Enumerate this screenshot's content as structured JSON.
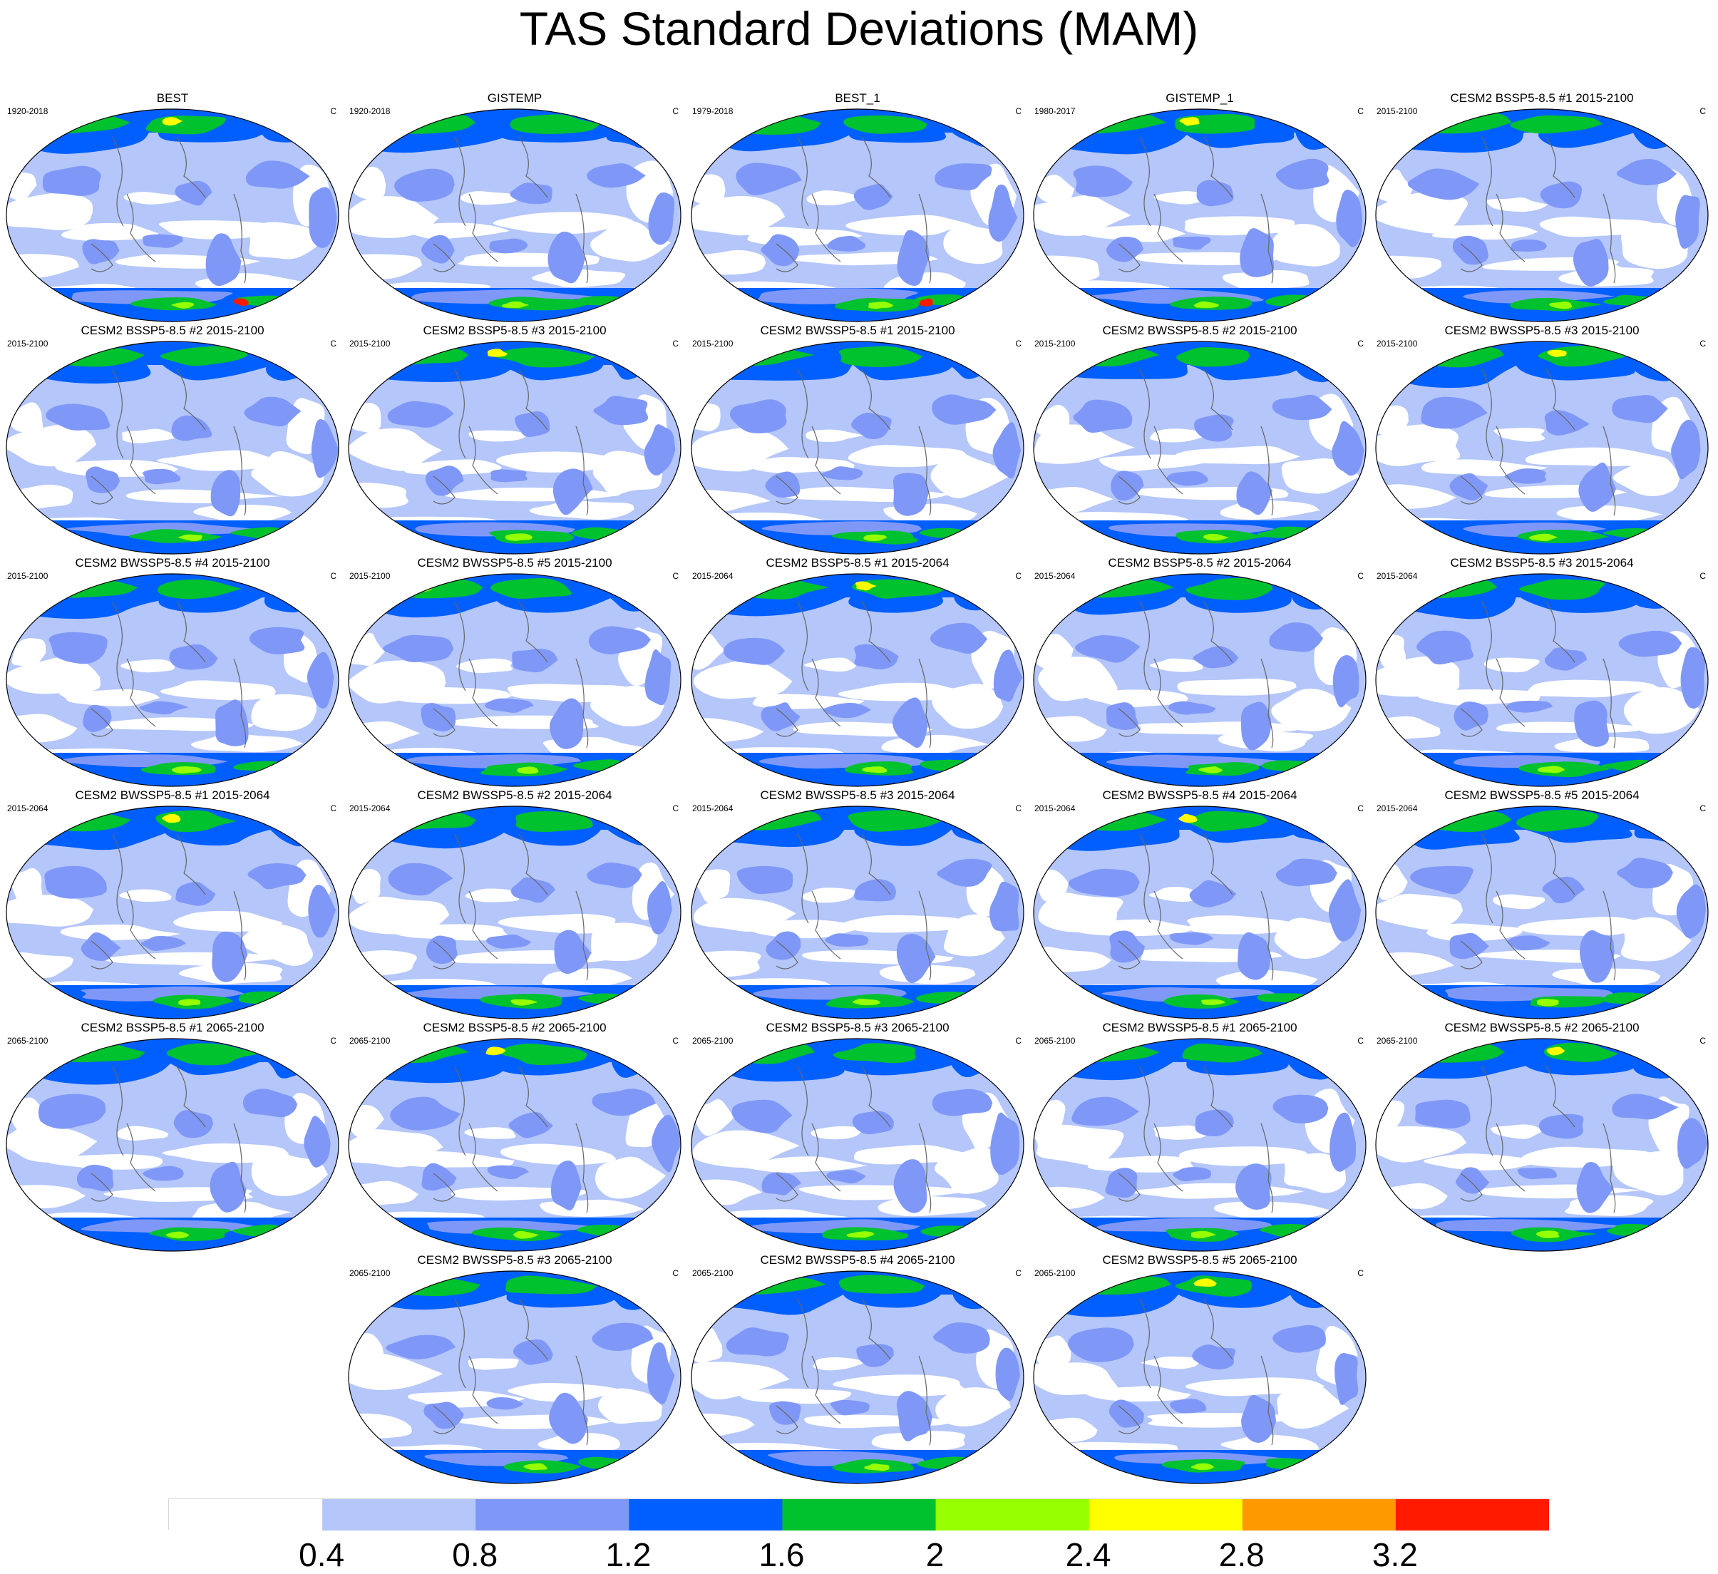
{
  "title": "TAS Standard Deviations (MAM)",
  "units": "C",
  "panels": [
    {
      "title": "BEST",
      "period": "1920-2018"
    },
    {
      "title": "GISTEMP",
      "period": "1920-2018"
    },
    {
      "title": "BEST_1",
      "period": "1979-2018"
    },
    {
      "title": "GISTEMP_1",
      "period": "1980-2017"
    },
    {
      "title": "CESM2 BSSP5-8.5 #1 2015-2100",
      "period": "2015-2100"
    },
    {
      "title": "CESM2 BSSP5-8.5 #2 2015-2100",
      "period": "2015-2100"
    },
    {
      "title": "CESM2 BSSP5-8.5 #3 2015-2100",
      "period": "2015-2100"
    },
    {
      "title": "CESM2 BWSSP5-8.5 #1 2015-2100",
      "period": "2015-2100"
    },
    {
      "title": "CESM2 BWSSP5-8.5 #2 2015-2100",
      "period": "2015-2100"
    },
    {
      "title": "CESM2 BWSSP5-8.5 #3 2015-2100",
      "period": "2015-2100"
    },
    {
      "title": "CESM2 BWSSP5-8.5 #4 2015-2100",
      "period": "2015-2100"
    },
    {
      "title": "CESM2 BWSSP5-8.5 #5 2015-2100",
      "period": "2015-2100"
    },
    {
      "title": "CESM2 BSSP5-8.5 #1 2015-2064",
      "period": "2015-2064"
    },
    {
      "title": "CESM2 BSSP5-8.5 #2 2015-2064",
      "period": "2015-2064"
    },
    {
      "title": "CESM2 BSSP5-8.5 #3 2015-2064",
      "period": "2015-2064"
    },
    {
      "title": "CESM2 BWSSP5-8.5 #1 2015-2064",
      "period": "2015-2064"
    },
    {
      "title": "CESM2 BWSSP5-8.5 #2 2015-2064",
      "period": "2015-2064"
    },
    {
      "title": "CESM2 BWSSP5-8.5 #3 2015-2064",
      "period": "2015-2064"
    },
    {
      "title": "CESM2 BWSSP5-8.5 #4 2015-2064",
      "period": "2015-2064"
    },
    {
      "title": "CESM2 BWSSP5-8.5 #5 2015-2064",
      "period": "2015-2064"
    },
    {
      "title": "CESM2 BSSP5-8.5 #1 2065-2100",
      "period": "2065-2100"
    },
    {
      "title": "CESM2 BSSP5-8.5 #2 2065-2100",
      "period": "2065-2100"
    },
    {
      "title": "CESM2 BSSP5-8.5 #3 2065-2100",
      "period": "2065-2100"
    },
    {
      "title": "CESM2 BWSSP5-8.5 #1 2065-2100",
      "period": "2065-2100"
    },
    {
      "title": "CESM2 BWSSP5-8.5 #2 2065-2100",
      "period": "2065-2100"
    },
    {
      "title": "CESM2 BWSSP5-8.5 #3 2065-2100",
      "period": "2065-2100"
    },
    {
      "title": "CESM2 BWSSP5-8.5 #4 2065-2100",
      "period": "2065-2100"
    },
    {
      "title": "CESM2 BWSSP5-8.5 #5 2065-2100",
      "period": "2065-2100"
    }
  ],
  "colorbar": {
    "colors": [
      "#ffffff",
      "#b4c6fa",
      "#7f98f8",
      "#005ffe",
      "#00c22e",
      "#96ff00",
      "#ffff00",
      "#ff9900",
      "#ff1a00"
    ],
    "tick_values": [
      0.4,
      0.8,
      1.2,
      1.6,
      2,
      2.4,
      2.8,
      3.2
    ],
    "tick_labels": [
      "0.4",
      "0.8",
      "1.2",
      "1.6",
      "2",
      "2.4",
      "2.8",
      "3.2"
    ]
  }
}
